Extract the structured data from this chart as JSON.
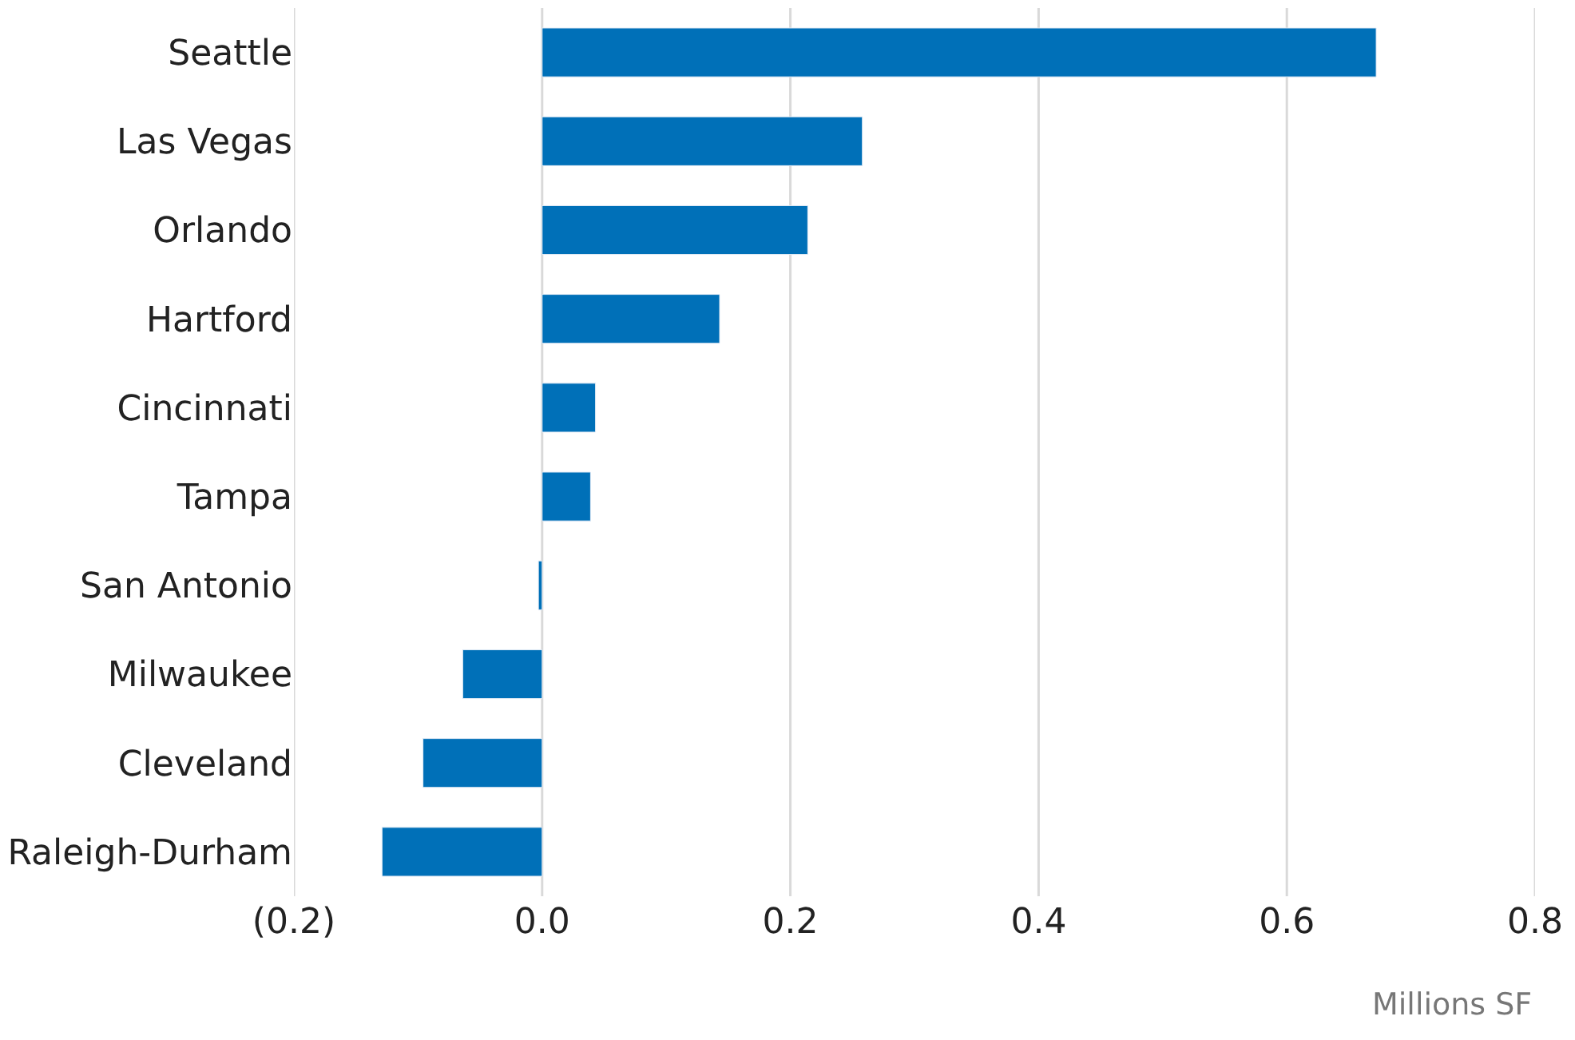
{
  "chart_data": {
    "type": "bar",
    "orientation": "horizontal",
    "categories": [
      "Seattle",
      "Las Vegas",
      "Orlando",
      "Hartford",
      "Cincinnati",
      "Tampa",
      "San Antonio",
      "Milwaukee",
      "Cleveland",
      "Raleigh-Durham"
    ],
    "values": [
      0.672,
      0.258,
      0.214,
      0.143,
      0.043,
      0.039,
      -0.003,
      -0.064,
      -0.096,
      -0.129
    ],
    "color": "#0070b8",
    "xlabel": "Millions SF",
    "xlim": [
      -0.2,
      0.8
    ],
    "xticks": [
      {
        "value": -0.2,
        "label": "(0.2)"
      },
      {
        "value": 0,
        "label": "0.0"
      },
      {
        "value": 0.2,
        "label": "0.2"
      },
      {
        "value": 0.4,
        "label": "0.4"
      },
      {
        "value": 0.6,
        "label": "0.6"
      },
      {
        "value": 0.8,
        "label": "0.8"
      }
    ],
    "grid": "x"
  }
}
